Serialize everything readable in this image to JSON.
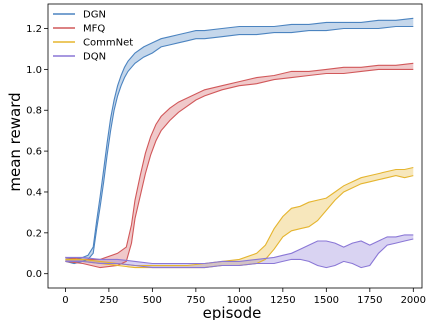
{
  "chart_data": {
    "type": "line",
    "title": "",
    "xlabel": "episode",
    "ylabel": "mean reward",
    "xlim": [
      -100,
      2050
    ],
    "ylim": [
      -0.07,
      1.32
    ],
    "xticks": [
      0,
      250,
      500,
      750,
      1000,
      1250,
      1500,
      1750,
      2000
    ],
    "yticks": [
      0.0,
      0.2,
      0.4,
      0.6,
      0.8,
      1.0,
      1.2
    ],
    "ytick_labels": [
      "0.0",
      "0.2",
      "0.4",
      "0.6",
      "0.8",
      "1.0",
      "1.2"
    ],
    "grid": false,
    "legend_position": "top-left",
    "band_note": "shaded region between lower and upper curves",
    "series": [
      {
        "name": "DGN",
        "color": "#4c84c0",
        "x": [
          0,
          50,
          100,
          130,
          160,
          180,
          200,
          220,
          240,
          260,
          280,
          300,
          320,
          340,
          360,
          380,
          400,
          450,
          500,
          550,
          600,
          650,
          700,
          750,
          800,
          900,
          1000,
          1100,
          1200,
          1300,
          1400,
          1500,
          1600,
          1700,
          1800,
          1900,
          2000
        ],
        "lower": [
          0.06,
          0.05,
          0.06,
          0.07,
          0.1,
          0.22,
          0.33,
          0.45,
          0.58,
          0.7,
          0.8,
          0.87,
          0.92,
          0.96,
          0.99,
          1.01,
          1.03,
          1.06,
          1.08,
          1.11,
          1.12,
          1.13,
          1.14,
          1.15,
          1.15,
          1.16,
          1.17,
          1.17,
          1.18,
          1.18,
          1.19,
          1.19,
          1.2,
          1.2,
          1.2,
          1.21,
          1.21
        ],
        "upper": [
          0.08,
          0.07,
          0.08,
          0.09,
          0.13,
          0.26,
          0.38,
          0.51,
          0.64,
          0.76,
          0.85,
          0.92,
          0.97,
          1.01,
          1.04,
          1.06,
          1.08,
          1.11,
          1.13,
          1.15,
          1.16,
          1.17,
          1.18,
          1.19,
          1.19,
          1.2,
          1.21,
          1.21,
          1.21,
          1.22,
          1.22,
          1.23,
          1.23,
          1.23,
          1.24,
          1.24,
          1.25
        ]
      },
      {
        "name": "MFQ",
        "color": "#d1585a",
        "x": [
          0,
          100,
          200,
          300,
          350,
          380,
          400,
          430,
          460,
          490,
          520,
          550,
          600,
          650,
          700,
          750,
          800,
          900,
          1000,
          1100,
          1200,
          1300,
          1400,
          1500,
          1600,
          1700,
          1800,
          1900,
          2000
        ],
        "lower": [
          0.06,
          0.05,
          0.03,
          0.04,
          0.06,
          0.15,
          0.27,
          0.38,
          0.49,
          0.58,
          0.65,
          0.7,
          0.75,
          0.79,
          0.82,
          0.85,
          0.87,
          0.9,
          0.92,
          0.93,
          0.95,
          0.96,
          0.97,
          0.98,
          0.98,
          0.99,
          1.0,
          1.0,
          1.0
        ],
        "upper": [
          0.08,
          0.07,
          0.07,
          0.1,
          0.13,
          0.24,
          0.36,
          0.48,
          0.59,
          0.67,
          0.73,
          0.77,
          0.81,
          0.84,
          0.86,
          0.88,
          0.9,
          0.92,
          0.94,
          0.96,
          0.97,
          0.99,
          0.99,
          1.0,
          1.01,
          1.01,
          1.02,
          1.02,
          1.03
        ]
      },
      {
        "name": "CommNet",
        "color": "#e5b52f",
        "x": [
          0,
          100,
          200,
          300,
          400,
          500,
          600,
          700,
          800,
          900,
          1000,
          1100,
          1150,
          1200,
          1250,
          1300,
          1350,
          1400,
          1450,
          1500,
          1550,
          1600,
          1650,
          1700,
          1750,
          1800,
          1850,
          1900,
          1950,
          2000
        ],
        "lower": [
          0.06,
          0.06,
          0.05,
          0.04,
          0.03,
          0.03,
          0.03,
          0.03,
          0.03,
          0.04,
          0.04,
          0.05,
          0.07,
          0.12,
          0.18,
          0.21,
          0.22,
          0.23,
          0.26,
          0.31,
          0.36,
          0.4,
          0.42,
          0.44,
          0.45,
          0.46,
          0.47,
          0.48,
          0.47,
          0.48
        ],
        "upper": [
          0.07,
          0.07,
          0.06,
          0.05,
          0.04,
          0.04,
          0.04,
          0.04,
          0.05,
          0.06,
          0.07,
          0.1,
          0.14,
          0.22,
          0.28,
          0.32,
          0.33,
          0.35,
          0.36,
          0.37,
          0.4,
          0.43,
          0.45,
          0.47,
          0.48,
          0.49,
          0.5,
          0.51,
          0.51,
          0.52
        ]
      },
      {
        "name": "DQN",
        "color": "#8a77d6",
        "x": [
          0,
          100,
          200,
          300,
          400,
          500,
          600,
          700,
          800,
          900,
          1000,
          1100,
          1200,
          1250,
          1300,
          1350,
          1400,
          1450,
          1500,
          1550,
          1600,
          1650,
          1700,
          1750,
          1800,
          1850,
          1900,
          1950,
          2000
        ],
        "lower": [
          0.06,
          0.06,
          0.05,
          0.05,
          0.04,
          0.03,
          0.03,
          0.03,
          0.03,
          0.04,
          0.04,
          0.05,
          0.05,
          0.06,
          0.07,
          0.07,
          0.06,
          0.04,
          0.03,
          0.04,
          0.06,
          0.05,
          0.03,
          0.04,
          0.1,
          0.14,
          0.15,
          0.16,
          0.17
        ],
        "upper": [
          0.08,
          0.08,
          0.07,
          0.07,
          0.06,
          0.05,
          0.05,
          0.05,
          0.05,
          0.06,
          0.06,
          0.07,
          0.08,
          0.09,
          0.1,
          0.12,
          0.14,
          0.16,
          0.16,
          0.15,
          0.13,
          0.15,
          0.16,
          0.14,
          0.16,
          0.18,
          0.18,
          0.19,
          0.19
        ]
      }
    ]
  }
}
